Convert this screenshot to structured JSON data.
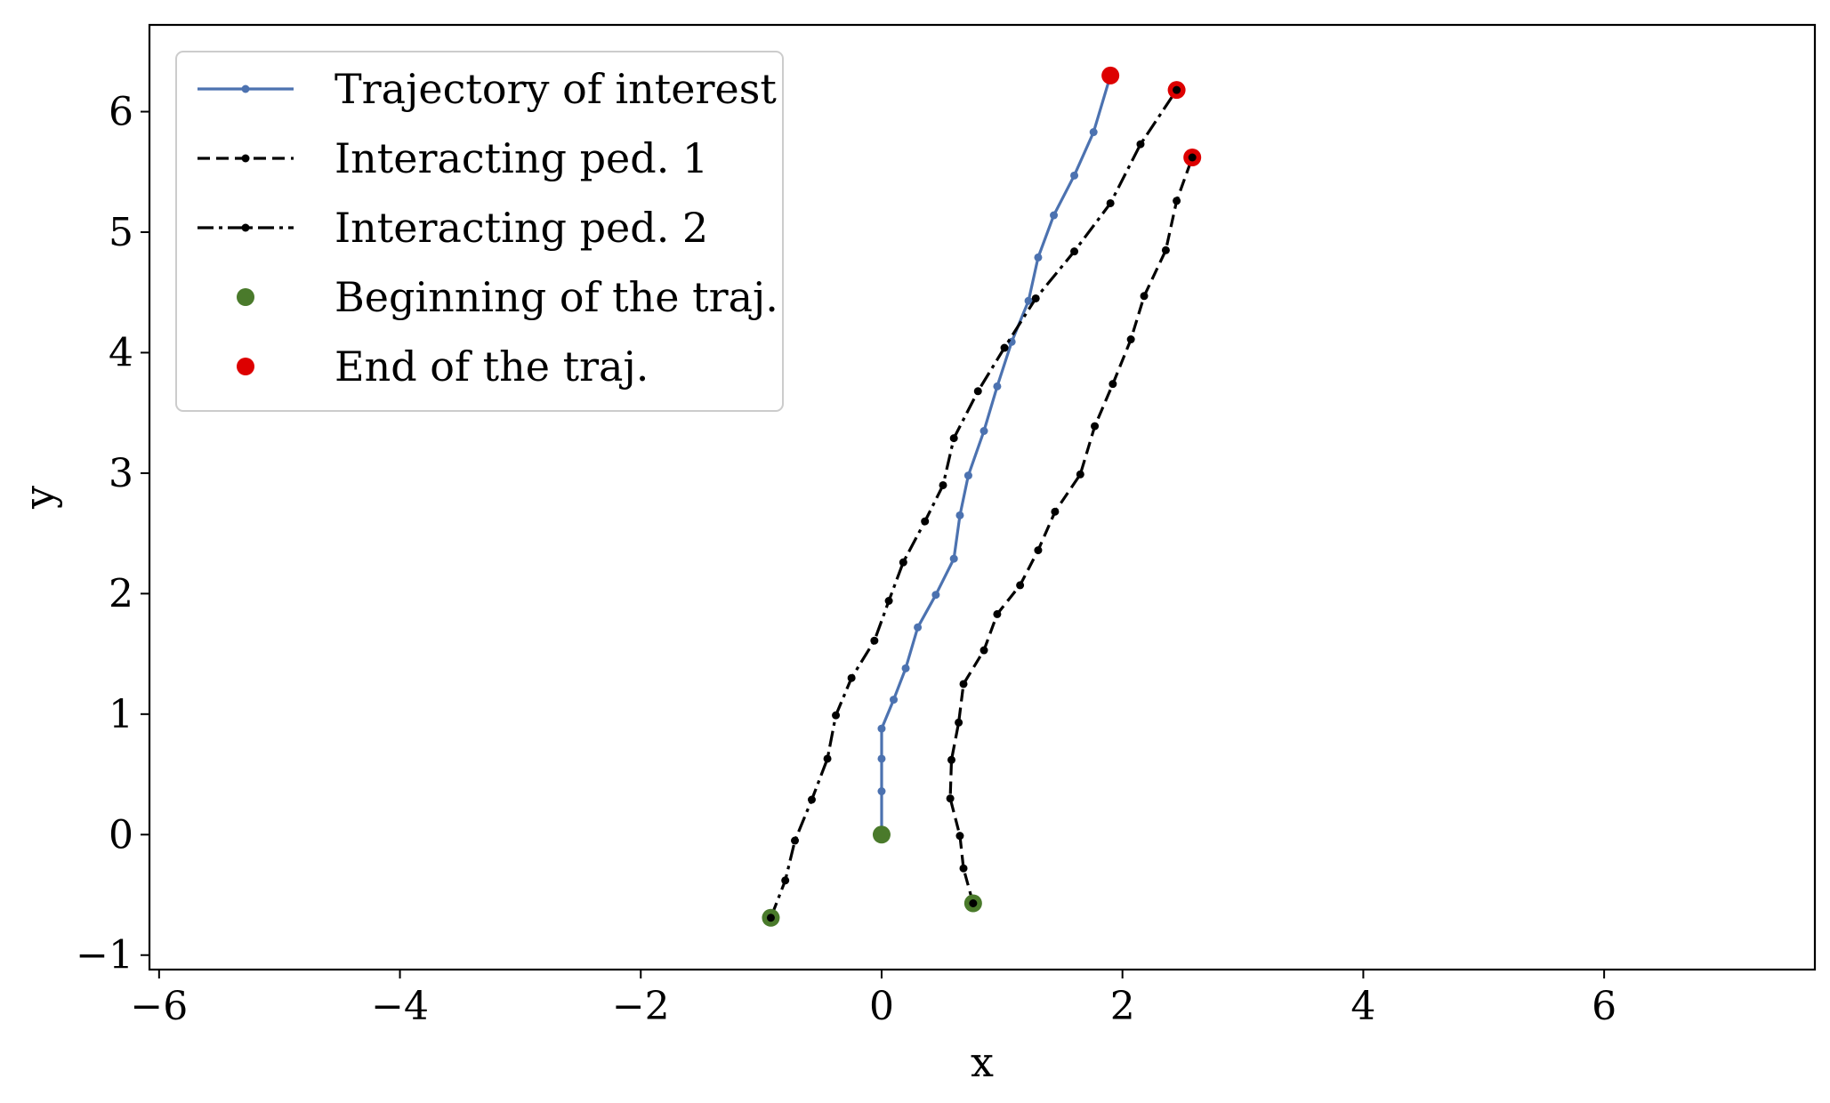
{
  "chart_data": {
    "type": "line",
    "title": "",
    "xlabel": "x",
    "ylabel": "y",
    "xlim": [
      -6.08,
      7.75
    ],
    "ylim": [
      -1.12,
      6.72
    ],
    "xticks": [
      -6,
      -4,
      -2,
      0,
      2,
      4,
      6
    ],
    "yticks": [
      -1,
      0,
      1,
      2,
      3,
      4,
      5,
      6
    ],
    "xtick_labels": [
      "−6",
      "−4",
      "−2",
      "0",
      "2",
      "4",
      "6"
    ],
    "ytick_labels": [
      "−1",
      "0",
      "1",
      "2",
      "3",
      "4",
      "5",
      "6"
    ],
    "grid": false,
    "legend_position": "top-left",
    "series": [
      {
        "name": "Trajectory of interest",
        "color": "#4c72b0",
        "style": "solid",
        "x": [
          0.0,
          0.0,
          0.0,
          0.0,
          0.1,
          0.2,
          0.3,
          0.45,
          0.6,
          0.65,
          0.72,
          0.85,
          0.96,
          1.08,
          1.22,
          1.3,
          1.43,
          1.6,
          1.76,
          1.9
        ],
        "y": [
          0.0,
          0.36,
          0.63,
          0.88,
          1.12,
          1.38,
          1.72,
          1.99,
          2.29,
          2.65,
          2.98,
          3.35,
          3.72,
          4.09,
          4.43,
          4.79,
          5.14,
          5.47,
          5.83,
          6.3
        ]
      },
      {
        "name": "Interacting ped. 1",
        "color": "#000000",
        "style": "dashed",
        "x": [
          0.76,
          0.68,
          0.65,
          0.57,
          0.58,
          0.64,
          0.68,
          0.85,
          0.96,
          1.15,
          1.3,
          1.44,
          1.65,
          1.77,
          1.92,
          2.07,
          2.18,
          2.36,
          2.45,
          2.58
        ],
        "y": [
          -0.57,
          -0.28,
          -0.01,
          0.3,
          0.62,
          0.93,
          1.25,
          1.53,
          1.83,
          2.07,
          2.36,
          2.68,
          2.99,
          3.39,
          3.74,
          4.11,
          4.47,
          4.85,
          5.26,
          5.62
        ]
      },
      {
        "name": "Interacting ped. 2",
        "color": "#000000",
        "style": "dashdot",
        "x": [
          -0.92,
          -0.8,
          -0.72,
          -0.58,
          -0.45,
          -0.38,
          -0.25,
          -0.06,
          0.06,
          0.18,
          0.36,
          0.51,
          0.6,
          0.8,
          1.02,
          1.28,
          1.6,
          1.9,
          2.15,
          2.45
        ],
        "y": [
          -0.69,
          -0.38,
          -0.05,
          0.29,
          0.63,
          0.99,
          1.3,
          1.61,
          1.94,
          2.26,
          2.6,
          2.9,
          3.29,
          3.68,
          4.04,
          4.45,
          4.84,
          5.24,
          5.73,
          6.18
        ]
      }
    ],
    "markers": [
      {
        "name": "Beginning of the traj.",
        "color": "#4a7a2b",
        "points": [
          [
            0.0,
            0.0
          ],
          [
            0.76,
            -0.57
          ],
          [
            -0.92,
            -0.69
          ]
        ]
      },
      {
        "name": "End of the traj.",
        "color": "#dd0000",
        "points": [
          [
            1.9,
            6.3
          ],
          [
            2.45,
            6.18
          ],
          [
            2.58,
            5.62
          ]
        ]
      }
    ]
  }
}
